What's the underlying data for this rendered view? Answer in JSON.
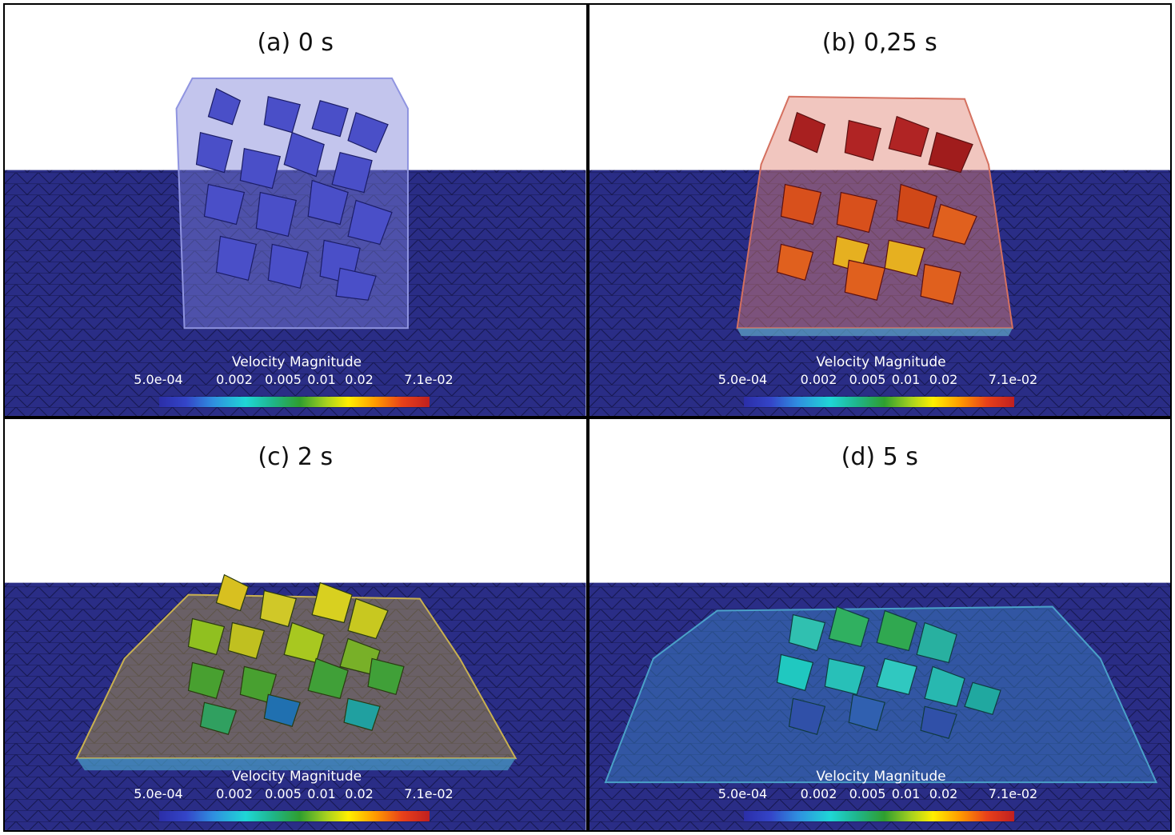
{
  "panels": [
    {
      "id": "a",
      "title": "(a) 0 s"
    },
    {
      "id": "b",
      "title": "(b) 0,25 s"
    },
    {
      "id": "c",
      "title": "(c) 2 s"
    },
    {
      "id": "d",
      "title": "(d) 5 s"
    }
  ],
  "legend": {
    "title": "Velocity Magnitude",
    "ticks": [
      "5.0e-04",
      "0.002",
      "0.005",
      "0.01",
      "0.02",
      "7.1e-02"
    ]
  },
  "colors": {
    "ground": "#2a2d86",
    "mesh_line": "#15174f",
    "sky": "#ffffff"
  }
}
